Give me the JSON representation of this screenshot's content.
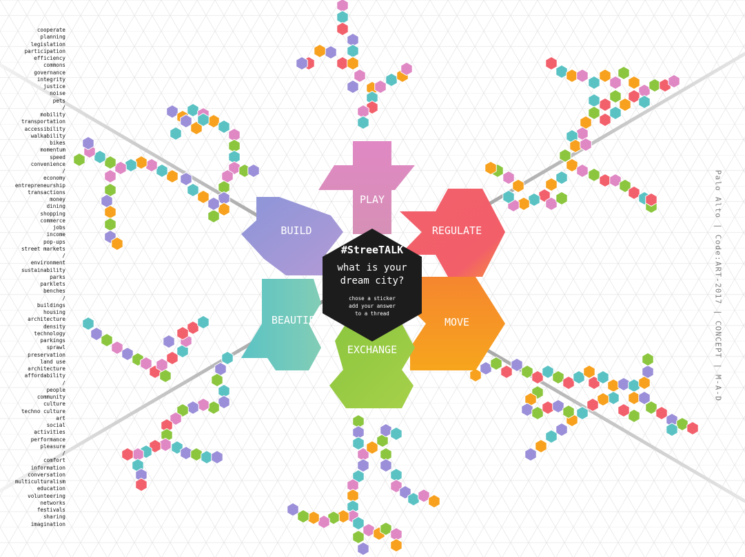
{
  "title": "#StreeTALK",
  "question": "what is your dream city?",
  "instructions": [
    "chose a sticker",
    "add your answer",
    "to a thread"
  ],
  "sidebar_text": "Palo Alto | Code:ART-2017 | CONCEPT | M-A-D",
  "categories": [
    {
      "id": "play",
      "label": "PLAY",
      "colors": [
        "#d87fc1",
        "#d68ab9"
      ]
    },
    {
      "id": "regulate",
      "label": "REGULATE",
      "colors": [
        "#f2606c",
        "#f98a41"
      ]
    },
    {
      "id": "move",
      "label": "MOVE",
      "colors": [
        "#f57f37",
        "#f7a320"
      ]
    },
    {
      "id": "exchange",
      "label": "EXCHANGE",
      "colors": [
        "#8cc63f",
        "#a6d14a"
      ]
    },
    {
      "id": "beautify",
      "label": "BEAUTIFY",
      "colors": [
        "#5bc2c4",
        "#7fcdb5"
      ]
    },
    {
      "id": "build",
      "label": "BUILD",
      "colors": [
        "#8c8ed6",
        "#a49cd8"
      ]
    }
  ],
  "keywords": [
    "cooperate",
    "planning",
    "legislation",
    "participation",
    "efficiency",
    "commons",
    "governance",
    "integrity",
    "justice",
    "noise",
    "pets",
    "/",
    "mobility",
    "transportation",
    "accessibility",
    "walkability",
    "bikes",
    "momentum",
    "speed",
    "convenience",
    "/",
    "economy",
    "entrepreneurship",
    "transactions",
    "money",
    "dining",
    "shopping",
    "commerce",
    "jobs",
    "income",
    "pop-ups",
    "street markets",
    "/",
    "environment",
    "sustainability",
    "parks",
    "parklets",
    "benches",
    "/",
    "buildings",
    "housing",
    "architecture",
    "density",
    "technology",
    "parkings",
    "sprawl",
    "preservation",
    "land use",
    "architecture",
    "affordability",
    "/",
    "people",
    "community",
    "culture",
    "techno culture",
    "art",
    "social",
    "activities",
    "performance",
    "pleasure",
    "/",
    "comfort",
    "information",
    "conversation",
    "multiculturalism",
    "education",
    "volunteering",
    "networks",
    "festivals",
    "sharing",
    "imagination"
  ],
  "palette": {
    "pink": "#df88c4",
    "red": "#f2606c",
    "orange": "#f7a11e",
    "green": "#8cc63f",
    "teal": "#5bc2c4",
    "purple": "#9a8fd8",
    "dark": "#1c1c1c",
    "grid": "#e4e4e4"
  }
}
